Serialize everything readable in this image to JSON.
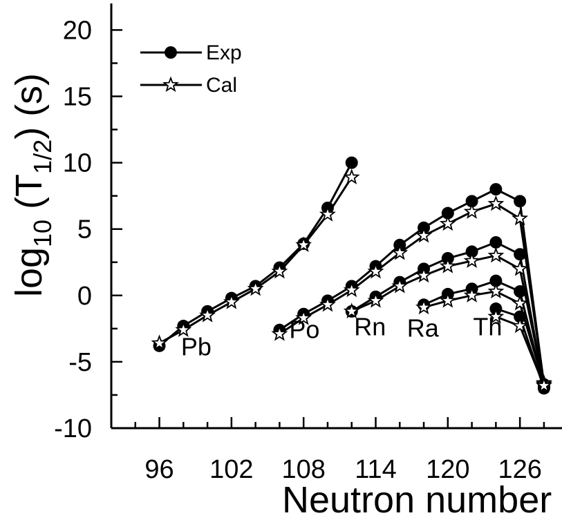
{
  "chart_data": {
    "type": "line",
    "xlabel": "Neutron number",
    "ylabel": {
      "prefix": "log",
      "sub1": "10",
      "mid": " (T",
      "sub2": "1/2",
      "suffix": ")  (s)"
    },
    "xlim": [
      92,
      129.5
    ],
    "ylim": [
      -10,
      22
    ],
    "xticks": [
      96,
      102,
      108,
      114,
      120,
      126
    ],
    "yticks": [
      20,
      15,
      10,
      5,
      0,
      -5,
      -10
    ],
    "legend": {
      "position": "top-left",
      "entries": [
        {
          "label": "Exp",
          "marker": "circle"
        },
        {
          "label": "Cal",
          "marker": "star"
        }
      ]
    },
    "series": [
      {
        "element": "Pb",
        "label_at": [
          97.8,
          -4.5
        ],
        "x": [
          96,
          98,
          100,
          102,
          104,
          106,
          108,
          110,
          112
        ],
        "exp": [
          -3.8,
          -2.3,
          -1.2,
          -0.2,
          0.7,
          2.1,
          3.9,
          6.6,
          10.0
        ],
        "cal": [
          -3.6,
          -2.6,
          -1.5,
          -0.5,
          0.5,
          1.8,
          3.8,
          6.1,
          8.9
        ]
      },
      {
        "element": "Po",
        "label_at": [
          106.8,
          -3.2
        ],
        "x": [
          106,
          108,
          110,
          112,
          114,
          116,
          118,
          120,
          122,
          124,
          126,
          128
        ],
        "exp": [
          -2.6,
          -1.4,
          -0.4,
          0.7,
          2.2,
          3.8,
          5.1,
          6.2,
          7.1,
          8.0,
          7.1,
          -6.7
        ],
        "cal": [
          -2.9,
          -1.7,
          -0.7,
          0.4,
          1.8,
          3.2,
          4.5,
          5.4,
          6.3,
          6.9,
          5.8,
          -6.6
        ]
      },
      {
        "element": "Rn",
        "label_at": [
          112.2,
          -3.0
        ],
        "x": [
          112,
          114,
          116,
          118,
          120,
          122,
          124,
          126,
          128
        ],
        "exp": [
          -1.2,
          -0.1,
          1.0,
          2.0,
          2.8,
          3.3,
          4.0,
          3.1,
          -6.9
        ],
        "cal": [
          -1.2,
          -0.4,
          0.7,
          1.5,
          2.2,
          2.6,
          3.0,
          2.0,
          -6.7
        ]
      },
      {
        "element": "Ra",
        "label_at": [
          116.6,
          -3.1
        ],
        "x": [
          118,
          120,
          122,
          124,
          126,
          128
        ],
        "exp": [
          -0.7,
          0.1,
          0.5,
          1.1,
          0.3,
          -6.9
        ],
        "cal": [
          -0.9,
          -0.4,
          0.0,
          0.3,
          -0.6,
          -6.7
        ]
      },
      {
        "element": "Th",
        "label_at": [
          122.1,
          -3.0
        ],
        "x": [
          124,
          126,
          128
        ],
        "exp": [
          -1.0,
          -1.6,
          -7.0
        ],
        "cal": [
          -1.6,
          -2.3,
          -6.8
        ]
      }
    ]
  }
}
